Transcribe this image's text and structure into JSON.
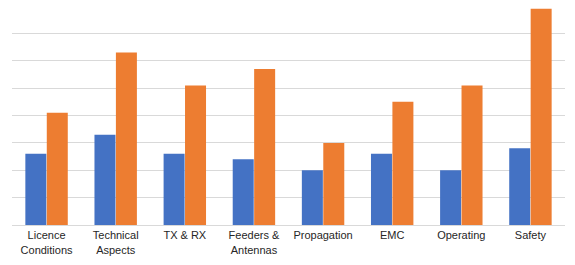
{
  "chart_data": {
    "type": "bar",
    "categories": [
      "Licence\nConditions",
      "Technical\nAspects",
      "TX & RX",
      "Feeders &\nAntennas",
      "Propagation",
      "EMC",
      "Operating",
      "Safety"
    ],
    "series": [
      {
        "color": "#4472c4",
        "values": [
          2.6,
          3.3,
          2.6,
          2.4,
          2.0,
          2.6,
          2.0,
          2.8
        ]
      },
      {
        "color": "#ed7d31",
        "values": [
          4.1,
          6.3,
          5.1,
          5.7,
          3.0,
          4.5,
          5.1,
          7.9
        ]
      }
    ],
    "ylim": [
      0,
      8
    ],
    "yticks": [
      0,
      1,
      2,
      3,
      4,
      5,
      6,
      7,
      8
    ],
    "grid": true,
    "tick_labels": "x"
  }
}
